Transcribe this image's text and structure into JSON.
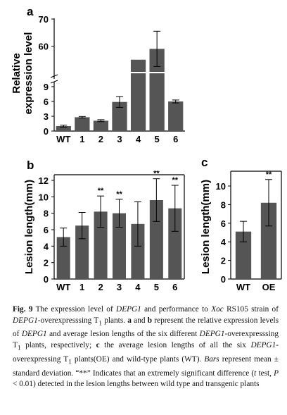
{
  "chart_data": [
    {
      "panel": "a",
      "type": "bar",
      "ylabel": "Relative expression level",
      "categories": [
        "WT",
        "1",
        "2",
        "3",
        "4",
        "5",
        "6"
      ],
      "values": [
        1.0,
        2.8,
        2.1,
        5.9,
        55.0,
        59.0,
        6.0
      ],
      "errors": [
        0.2,
        0.15,
        0.2,
        1.1,
        0,
        6.5,
        0.3
      ],
      "axis_break": [
        10,
        50
      ],
      "yticks": [
        "0",
        "3",
        "6",
        "9",
        "60",
        "70"
      ]
    },
    {
      "panel": "b",
      "type": "bar",
      "ylabel": "Lesion length(mm)",
      "categories": [
        "WT",
        "1",
        "2",
        "3",
        "4",
        "5",
        "6"
      ],
      "values": [
        5.1,
        6.5,
        8.2,
        8.0,
        6.7,
        9.6,
        8.6
      ],
      "errors": [
        1.1,
        1.6,
        1.9,
        1.7,
        2.7,
        2.6,
        2.8
      ],
      "significance": [
        "",
        "",
        "**",
        "**",
        "",
        "**",
        "**"
      ],
      "ylim": [
        0,
        13
      ],
      "yticks": [
        "0",
        "2",
        "4",
        "6",
        "8",
        "10",
        "12"
      ]
    },
    {
      "panel": "c",
      "type": "bar",
      "ylabel": "Lesion length(mm)",
      "categories": [
        "WT",
        "OE"
      ],
      "values": [
        5.1,
        8.2
      ],
      "errors": [
        1.1,
        2.5
      ],
      "significance": [
        "",
        "**"
      ],
      "ylim": [
        0,
        11.5
      ],
      "yticks": [
        "0",
        "2",
        "4",
        "6",
        "8",
        "10"
      ]
    }
  ],
  "caption": {
    "label": "Fig. 9",
    "html": " The expression level of <i>DEPG1</i> and performance to <i>Xoc</i> RS105 strain of <i>DEPG1</i>-overexpresssing T<sub>1</sub> plants. <b>a</b> and <b>b</b> represent the relative expression levels of <i>DEPG1</i> and average lesion lengths of the six different <i>DEPG1</i>-overexpresssing T<sub>1</sub> plants, respectively; <b>c</b> the average lesion lengths of all the six <i>DEPG1</i>-overexpressing T<sub>1</sub> plants(OE) and wild-type plants (WT). <i>Bars</i> represent mean ± standard deviation. “**” Indicates that an extremely significant difference (<i>t</i> test, <i>P</i> &lt; 0.01) detected in the lesion lengths between wild type and transgenic plants"
  }
}
